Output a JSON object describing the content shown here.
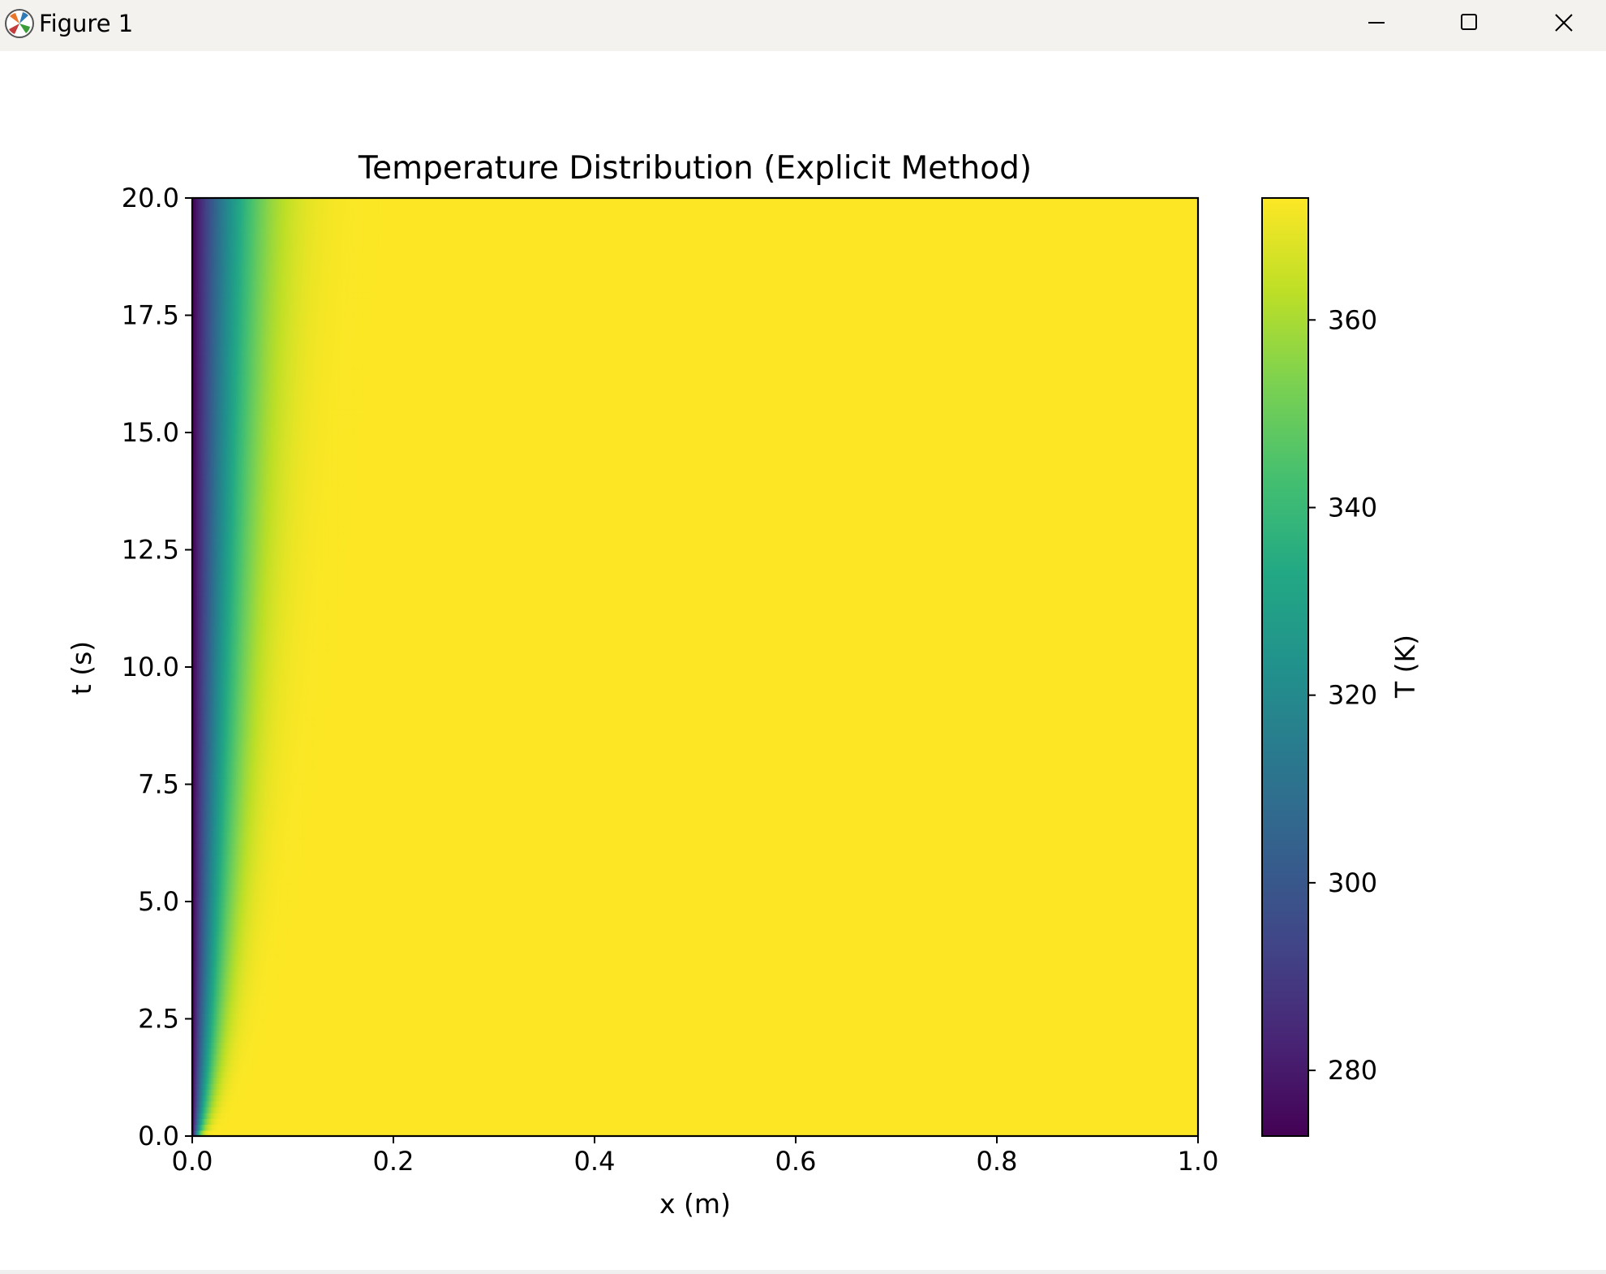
{
  "window": {
    "title": "Figure 1",
    "icon": "matplotlib-icon",
    "controls": [
      "minimize-icon",
      "maximize-icon",
      "close-icon"
    ]
  },
  "chart_data": {
    "type": "heatmap",
    "title": "Temperature Distribution (Explicit Method)",
    "xlabel": "x (m)",
    "ylabel": "t (s)",
    "xlim": [
      0.0,
      1.0
    ],
    "ylim": [
      0.0,
      20.0
    ],
    "xticks": [
      "0.0",
      "0.2",
      "0.4",
      "0.6",
      "0.8",
      "1.0"
    ],
    "yticks": [
      "0.0",
      "2.5",
      "5.0",
      "7.5",
      "10.0",
      "12.5",
      "15.0",
      "17.5",
      "20.0"
    ],
    "colormap": "viridis",
    "colorbar": {
      "label": "T (K)",
      "range": [
        273,
        373
      ],
      "ticks": [
        280,
        300,
        320,
        340,
        360
      ]
    },
    "field": {
      "boundary_x0_value": 273,
      "initial_value": 373,
      "description_points": [
        {
          "t": 20.0,
          "x": [
            0.0,
            0.02,
            0.05,
            0.08,
            0.12,
            0.16,
            0.2,
            1.0
          ],
          "T": [
            273,
            295,
            325,
            345,
            362,
            370,
            372,
            373
          ]
        },
        {
          "t": 10.0,
          "x": [
            0.0,
            0.02,
            0.04,
            0.06,
            0.09,
            0.12,
            0.15,
            1.0
          ],
          "T": [
            273,
            300,
            325,
            345,
            362,
            370,
            373,
            373
          ]
        },
        {
          "t": 2.5,
          "x": [
            0.0,
            0.01,
            0.02,
            0.03,
            0.05,
            0.07,
            1.0
          ],
          "T": [
            273,
            310,
            335,
            352,
            366,
            372,
            373
          ]
        },
        {
          "t": 0.0,
          "x": [
            0.0,
            0.01,
            1.0
          ],
          "T": [
            273,
            373,
            373
          ]
        }
      ]
    }
  }
}
